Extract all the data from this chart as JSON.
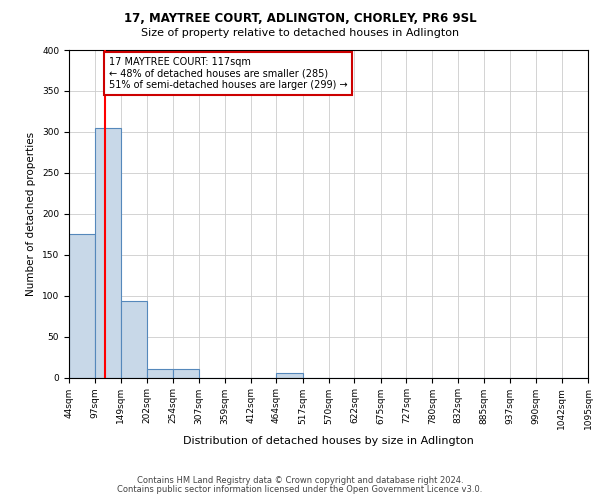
{
  "title1": "17, MAYTREE COURT, ADLINGTON, CHORLEY, PR6 9SL",
  "title2": "Size of property relative to detached houses in Adlington",
  "xlabel": "Distribution of detached houses by size in Adlington",
  "ylabel": "Number of detached properties",
  "bin_edges": [
    44,
    97,
    149,
    202,
    254,
    307,
    359,
    412,
    464,
    517,
    570,
    622,
    675,
    727,
    780,
    832,
    885,
    937,
    990,
    1042,
    1095
  ],
  "bar_heights": [
    175,
    305,
    93,
    10,
    10,
    0,
    0,
    0,
    5,
    0,
    0,
    0,
    0,
    0,
    0,
    0,
    0,
    0,
    0,
    0
  ],
  "bar_color": "#c8d8e8",
  "bar_edge_color": "#5588bb",
  "red_line_x": 117,
  "annotation_line1": "17 MAYTREE COURT: 117sqm",
  "annotation_line2": "← 48% of detached houses are smaller (285)",
  "annotation_line3": "51% of semi-detached houses are larger (299) →",
  "annotation_box_color": "#ffffff",
  "annotation_box_edge": "#cc0000",
  "ylim": [
    0,
    400
  ],
  "yticks": [
    0,
    50,
    100,
    150,
    200,
    250,
    300,
    350,
    400
  ],
  "footer1": "Contains HM Land Registry data © Crown copyright and database right 2024.",
  "footer2": "Contains public sector information licensed under the Open Government Licence v3.0.",
  "bg_color": "#ffffff",
  "grid_color": "#cccccc",
  "title1_fontsize": 8.5,
  "title2_fontsize": 8,
  "ylabel_fontsize": 7.5,
  "xlabel_fontsize": 8,
  "tick_fontsize": 6.5,
  "annotation_fontsize": 7,
  "footer_fontsize": 6
}
